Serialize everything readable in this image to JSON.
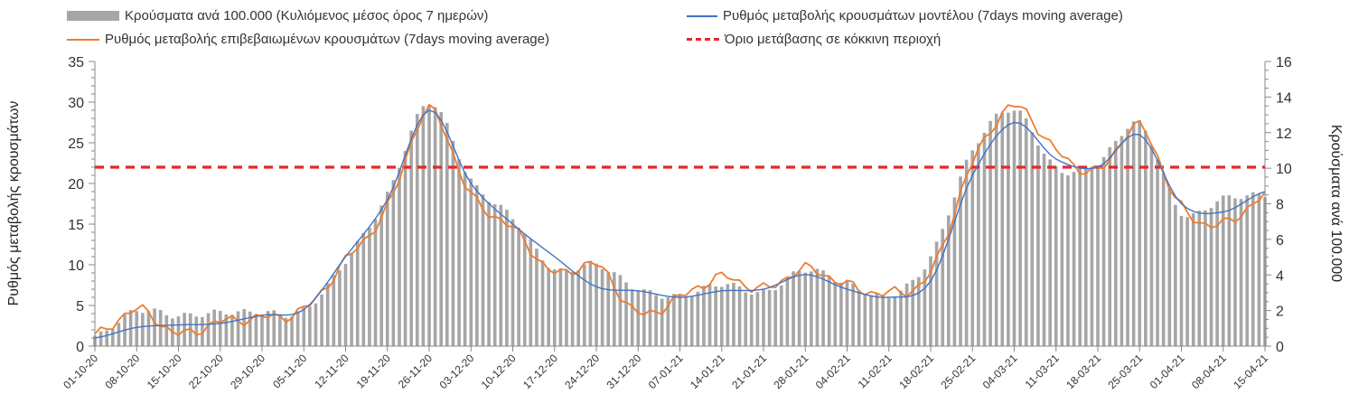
{
  "chart_data": {
    "type": "bar+line",
    "series": [
      {
        "name": "Κρούσματα ανά 100.000 (Κυλιόμενος μέσος όρος 7 ημερών)",
        "kind": "bar",
        "axis": "right",
        "color": "#a6a6a6"
      },
      {
        "name": "Ρυθμός μεταβολής κρουσμάτων μοντέλου (7days moving average)",
        "kind": "line",
        "axis": "left",
        "color": "#4472c4"
      },
      {
        "name": "Ρυθμός μεταβολής επιβεβαιωμένων κρουσμάτων (7days moving average)",
        "kind": "line",
        "axis": "left",
        "color": "#ed7d31"
      },
      {
        "name": "Όριο μετάβασης σε κόκκινη περιοχή",
        "kind": "hline",
        "axis": "left",
        "value": 22,
        "color": "#e8262a"
      }
    ],
    "y_left": {
      "label": "Ρυθμός μεταβολής κρουσμάτων",
      "min": 0,
      "max": 35,
      "ticks": [
        "0",
        "5",
        "10",
        "15",
        "20",
        "25",
        "30",
        "35"
      ]
    },
    "y_right": {
      "label": "Κρούσματα ανά 100.000",
      "min": 0,
      "max": 16,
      "ticks": [
        "0",
        "2",
        "4",
        "6",
        "8",
        "10",
        "12",
        "14",
        "16"
      ]
    },
    "x_tick_labels": [
      "01-10-20",
      "08-10-20",
      "15-10-20",
      "22-10-20",
      "29-10-20",
      "05-11-20",
      "12-11-20",
      "19-11-20",
      "26-11-20",
      "03-12-20",
      "10-12-20",
      "17-12-20",
      "24-12-20",
      "31-12-20",
      "07-01-21",
      "14-01-21",
      "21-01-21",
      "28-01-21",
      "04-02-21",
      "11-02-21",
      "18-02-21",
      "25-02-21",
      "04-03-21",
      "11-03-21",
      "18-03-21",
      "25-03-21",
      "01-04-21",
      "08-04-21",
      "15-04-21"
    ],
    "weekly_anchors": {
      "bars": [
        0.5,
        2.0,
        1.7,
        1.9,
        1.9,
        2.0,
        4.8,
        8.5,
        13.7,
        9.3,
        7.2,
        4.3,
        4.6,
        3.2,
        2.8,
        3.5,
        3.0,
        4.3,
        3.5,
        2.8,
        5.0,
        11.0,
        13.3,
        10.0,
        10.3,
        12.5,
        7.5,
        8.3,
        8.5
      ],
      "model": [
        1.0,
        2.3,
        2.6,
        2.8,
        3.8,
        4.5,
        11.0,
        18.0,
        29.0,
        20.0,
        15.0,
        11.0,
        7.3,
        6.8,
        6.0,
        6.8,
        7.0,
        8.8,
        7.0,
        6.0,
        8.0,
        21.0,
        27.5,
        23.0,
        22.0,
        26.0,
        17.5,
        16.5,
        19.0
      ],
      "actual": [
        1.2,
        4.5,
        1.5,
        3.0,
        3.5,
        4.5,
        10.5,
        17.0,
        29.0,
        18.5,
        14.5,
        9.0,
        10.0,
        4.0,
        6.0,
        8.5,
        7.0,
        9.5,
        7.5,
        6.5,
        9.0,
        22.5,
        29.5,
        24.0,
        21.5,
        27.0,
        17.0,
        15.0,
        18.5
      ]
    }
  }
}
